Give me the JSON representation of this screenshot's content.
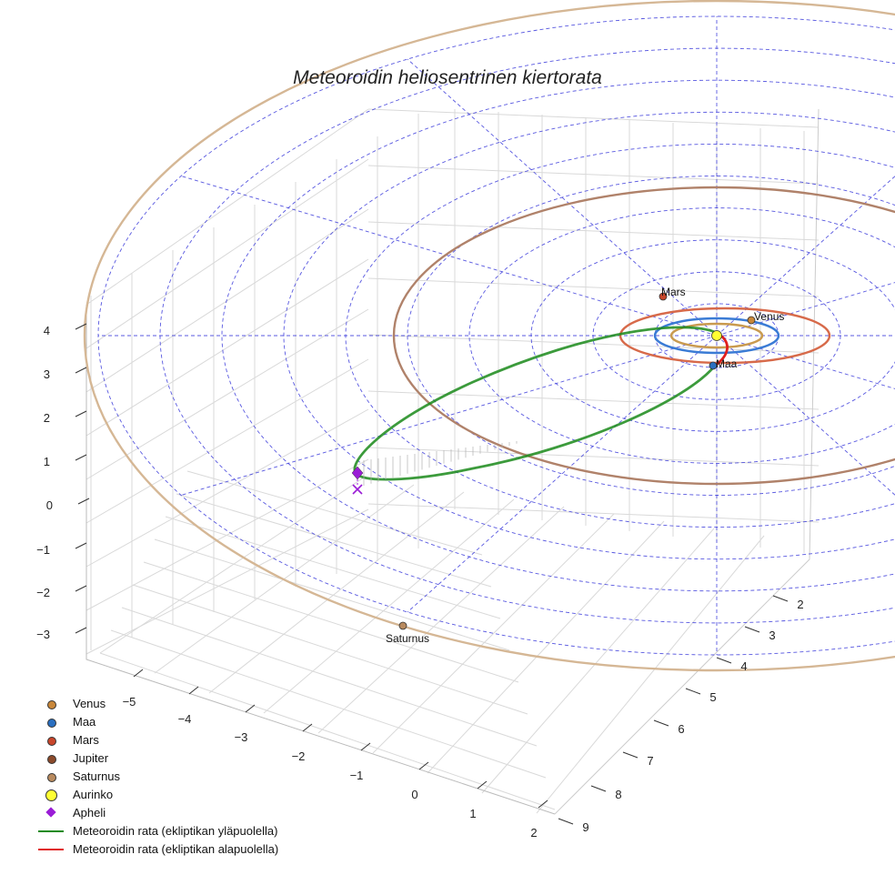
{
  "chart_data": {
    "type": "scatter",
    "title": "Meteoroidin heliosentrinen kiertorata",
    "xlabel": "",
    "ylabel": "",
    "zlabel": "",
    "x_ticks": [
      "−5",
      "−4",
      "−3",
      "−2",
      "−1",
      "0",
      "1",
      "2"
    ],
    "y_ticks": [
      "2",
      "3",
      "4",
      "5",
      "6",
      "7",
      "8",
      "9"
    ],
    "z_ticks": [
      "4",
      "3",
      "2",
      "1",
      "0",
      "−1",
      "−2",
      "−3"
    ],
    "grid": true,
    "ecliptic_grid": {
      "rings_au": [
        1,
        2,
        3,
        4,
        5,
        6,
        7,
        8,
        9,
        10
      ],
      "radial_lines": 12,
      "color": "#3b3bdb"
    },
    "planets": [
      {
        "name": "Venus",
        "a_au": 0.72,
        "color": "#c8873a",
        "orbit_color": "#c99a4f",
        "label": "Venus"
      },
      {
        "name": "Maa",
        "a_au": 1.0,
        "color": "#2a6fc0",
        "orbit_color": "#3a7bd5",
        "label": "Maa"
      },
      {
        "name": "Mars",
        "a_au": 1.52,
        "color": "#c8462b",
        "orbit_color": "#d76a4a",
        "label": "Mars"
      },
      {
        "name": "Jupiter",
        "a_au": 5.2,
        "color": "#8b4a2b",
        "orbit_color": "#b0826a",
        "label": ""
      },
      {
        "name": "Saturnus",
        "a_au": 9.54,
        "color": "#b88a5e",
        "orbit_color": "#d5b795",
        "label": "Saturnus"
      }
    ],
    "sun": {
      "name": "Aurinko",
      "color": "#ffff33"
    },
    "meteoroid_orbit": {
      "aphelion_au": 5.8,
      "perihelion_au": 0.2,
      "inclination_deg": 10
    },
    "aphelion": {
      "name": "Apheli",
      "color": "#9a1dd6"
    },
    "series": [
      {
        "name": "Meteoroidin rata (ekliptikan yläpuolella)",
        "color": "#1a8a1a"
      },
      {
        "name": "Meteoroidin rata (ekliptikan alapuolella)",
        "color": "#e01f1f"
      }
    ],
    "legend_position": "bottom-left"
  },
  "legend": [
    {
      "label": "Venus",
      "kind": "dot",
      "color": "#c8873a"
    },
    {
      "label": "Maa",
      "kind": "dot",
      "color": "#2a6fc0"
    },
    {
      "label": "Mars",
      "kind": "dot",
      "color": "#c8462b"
    },
    {
      "label": "Jupiter",
      "kind": "dot",
      "color": "#8b4a2b"
    },
    {
      "label": "Saturnus",
      "kind": "dot",
      "color": "#b88a5e"
    },
    {
      "label": "Aurinko",
      "kind": "bigdot",
      "color": "#ffff33"
    },
    {
      "label": "Apheli",
      "kind": "diamond",
      "color": "#9a1dd6"
    },
    {
      "label": "Meteoroidin rata (ekliptikan yläpuolella)",
      "kind": "line",
      "color": "#1a8a1a"
    },
    {
      "label": "Meteoroidin rata (ekliptikan alapuolella)",
      "kind": "line",
      "color": "#e01f1f"
    }
  ]
}
